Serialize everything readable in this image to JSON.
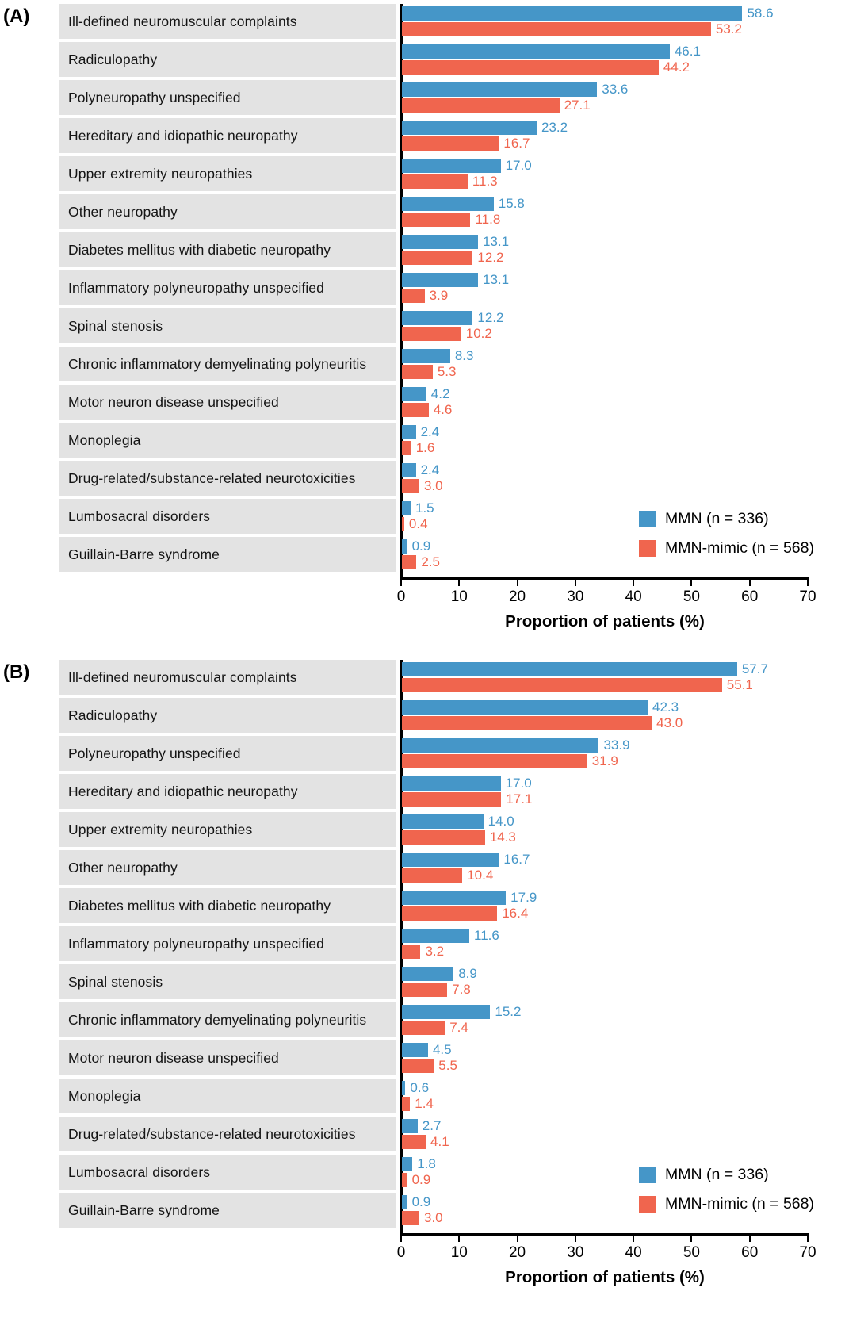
{
  "figure": {
    "axis_label": "Proportion of patients (%)",
    "axis_ticks": [
      0,
      10,
      20,
      30,
      40,
      50,
      60,
      70
    ],
    "axis_max": 70,
    "legend": [
      {
        "label": "MMN (n = 336)",
        "color": "#4596c8"
      },
      {
        "label": "MMN-mimic (n = 568)",
        "color": "#f0654e"
      }
    ]
  },
  "colors": {
    "mmn_blue": "#4596c8",
    "mimic_red": "#f0654e",
    "row_background": "#e3e3e3",
    "axis_black": "#000000"
  },
  "chart_data": [
    {
      "type": "bar",
      "panel_label": "(A)",
      "orientation": "horizontal",
      "xlabel": "Proportion of patients (%)",
      "xlim": [
        0,
        70
      ],
      "grid": false,
      "legend_position": "lower right",
      "categories": [
        "Ill-defined neuromuscular complaints",
        "Radiculopathy",
        "Polyneuropathy unspecified",
        "Hereditary and idiopathic neuropathy",
        "Upper extremity neuropathies",
        "Other neuropathy",
        "Diabetes mellitus with diabetic neuropathy",
        "Inflammatory polyneuropathy unspecified",
        "Spinal stenosis",
        "Chronic inflammatory demyelinating polyneuritis",
        "Motor neuron disease unspecified",
        "Monoplegia",
        "Drug-related/substance-related neurotoxicities",
        "Lumbosacral disorders",
        "Guillain-Barre syndrome"
      ],
      "series": [
        {
          "name": "MMN (n = 336)",
          "color": "#4596c8",
          "values": [
            58.6,
            46.1,
            33.6,
            23.2,
            17.0,
            15.8,
            13.1,
            13.1,
            12.2,
            8.3,
            4.2,
            2.4,
            2.4,
            1.5,
            0.9
          ]
        },
        {
          "name": "MMN-mimic (n = 568)",
          "color": "#f0654e",
          "values": [
            53.2,
            44.2,
            27.1,
            16.7,
            11.3,
            11.8,
            12.2,
            3.9,
            10.2,
            5.3,
            4.6,
            1.6,
            3.0,
            0.4,
            2.5
          ]
        }
      ]
    },
    {
      "type": "bar",
      "panel_label": "(B)",
      "orientation": "horizontal",
      "xlabel": "Proportion of patients (%)",
      "xlim": [
        0,
        70
      ],
      "grid": false,
      "legend_position": "lower right",
      "categories": [
        "Ill-defined neuromuscular complaints",
        "Radiculopathy",
        "Polyneuropathy unspecified",
        "Hereditary and idiopathic neuropathy",
        "Upper extremity neuropathies",
        "Other neuropathy",
        "Diabetes mellitus with diabetic neuropathy",
        "Inflammatory polyneuropathy unspecified",
        "Spinal stenosis",
        "Chronic inflammatory demyelinating polyneuritis",
        "Motor neuron disease unspecified",
        "Monoplegia",
        "Drug-related/substance-related neurotoxicities",
        "Lumbosacral disorders",
        "Guillain-Barre syndrome"
      ],
      "series": [
        {
          "name": "MMN (n = 336)",
          "color": "#4596c8",
          "values": [
            57.7,
            42.3,
            33.9,
            17.0,
            14.0,
            16.7,
            17.9,
            11.6,
            8.9,
            15.2,
            4.5,
            0.6,
            2.7,
            1.8,
            0.9
          ]
        },
        {
          "name": "MMN-mimic (n = 568)",
          "color": "#f0654e",
          "values": [
            55.1,
            43.0,
            31.9,
            17.1,
            14.3,
            10.4,
            16.4,
            3.2,
            7.8,
            7.4,
            5.5,
            1.4,
            4.1,
            0.9,
            3.0
          ]
        }
      ]
    }
  ]
}
